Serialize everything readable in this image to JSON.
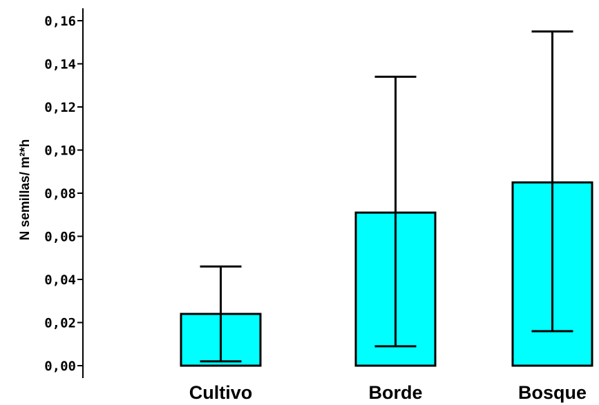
{
  "chart_data": {
    "type": "bar",
    "title": "",
    "xlabel": "",
    "ylabel": "N semillas/ m²*h",
    "ylim": [
      0,
      0.16
    ],
    "yticks": [
      "0,00",
      "0,02",
      "0,04",
      "0,06",
      "0,08",
      "0,10",
      "0,12",
      "0,14",
      "0,16"
    ],
    "categories": [
      "Cultivo",
      "Borde",
      "Bosque"
    ],
    "values": [
      0.024,
      0.071,
      0.085
    ],
    "error_low": [
      0.002,
      0.009,
      0.016
    ],
    "error_high": [
      0.046,
      0.134,
      0.155
    ],
    "bar_color": "#00ffff",
    "grid": false,
    "legend": "none"
  }
}
